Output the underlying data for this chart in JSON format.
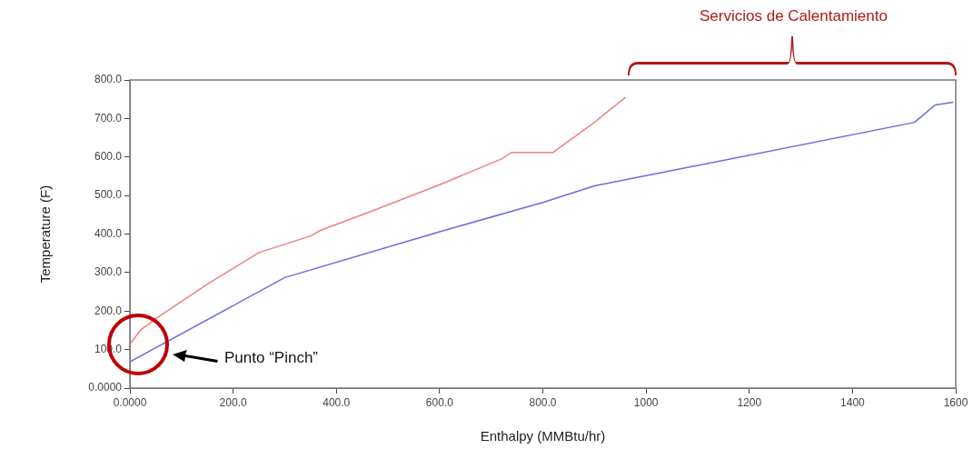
{
  "chart_data": {
    "type": "line",
    "xlabel": "Enthalpy (MMBtu/hr)",
    "ylabel": "Temperature (F)",
    "annotations": [
      "Servicios de Calentamiento",
      "Punto “Pinch”"
    ],
    "xlim": [
      0,
      1600
    ],
    "ylim": [
      0,
      800
    ],
    "xticks": [
      {
        "value": 0,
        "label": "0.0000"
      },
      {
        "value": 200,
        "label": "200.0"
      },
      {
        "value": 400,
        "label": "400.0"
      },
      {
        "value": 600,
        "label": "600.0"
      },
      {
        "value": 800,
        "label": "800.0"
      },
      1000,
      1200,
      1400,
      1600
    ],
    "yticks": [
      {
        "value": 0,
        "label": "0.0000"
      },
      {
        "value": 100,
        "label": "100.0"
      },
      {
        "value": 200,
        "label": "200.0"
      },
      {
        "value": 300,
        "label": "300.0"
      },
      {
        "value": 400,
        "label": "400.0"
      },
      {
        "value": 500,
        "label": "500.0"
      },
      {
        "value": 600,
        "label": "600.0"
      },
      {
        "value": 700,
        "label": "700.0"
      },
      {
        "value": 800,
        "label": "800.0"
      }
    ],
    "grid": false,
    "legend": false,
    "marker": "none",
    "line_style": "solid",
    "series": [
      {
        "color": "#f08080",
        "x": [
          0,
          20,
          50,
          150,
          250,
          350,
          370,
          470,
          600,
          720,
          740,
          820,
          900,
          960
        ],
        "values": [
          114,
          150,
          180,
          270,
          352,
          395,
          410,
          460,
          528,
          595,
          612,
          612,
          690,
          755
        ]
      },
      {
        "color": "#6a6ae0",
        "x": [
          0,
          300,
          600,
          800,
          900,
          1520,
          1560,
          1595
        ],
        "values": [
          68,
          287,
          406,
          482,
          525,
          690,
          735,
          742
        ]
      }
    ]
  }
}
